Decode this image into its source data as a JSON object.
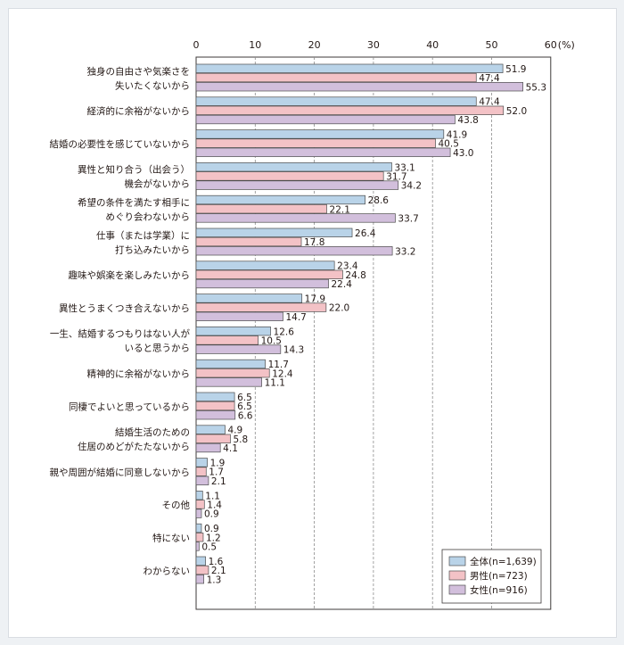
{
  "chart_data": {
    "type": "bar",
    "orientation": "horizontal",
    "unit": "(%)",
    "xlim": [
      0,
      60
    ],
    "ticks": [
      0,
      10,
      20,
      30,
      40,
      50,
      60
    ],
    "grid": "dashed vertical",
    "legend_position": "bottom-right",
    "categories": [
      [
        "独身の自由さや気楽さを",
        "失いたくないから"
      ],
      [
        "経済的に余裕がないから"
      ],
      [
        "結婚の必要性を感じていないから"
      ],
      [
        "異性と知り合う（出会う）",
        "機会がないから"
      ],
      [
        "希望の条件を満たす相手に",
        "めぐり会わないから"
      ],
      [
        "仕事（または学業）に",
        "打ち込みたいから"
      ],
      [
        "趣味や娯楽を楽しみたいから"
      ],
      [
        "異性とうまくつき合えないから"
      ],
      [
        "一生、結婚するつもりはない人が",
        "いると思うから"
      ],
      [
        "精神的に余裕がないから"
      ],
      [
        "同棲でよいと思っているから"
      ],
      [
        "結婚生活のための",
        "住居のめどがたたないから"
      ],
      [
        "親や周囲が結婚に同意しないから"
      ],
      [
        "その他"
      ],
      [
        "特にない"
      ],
      [
        "わからない"
      ]
    ],
    "series": [
      {
        "name": "全体(n=1,639)",
        "color": "#b9d3e8",
        "values": [
          51.9,
          47.4,
          41.9,
          33.1,
          28.6,
          26.4,
          23.4,
          17.9,
          12.6,
          11.7,
          6.5,
          4.9,
          1.9,
          1.1,
          0.9,
          1.6
        ]
      },
      {
        "name": "男性(n=723)",
        "color": "#f3c2c6",
        "values": [
          47.4,
          52.0,
          40.5,
          31.7,
          22.1,
          17.8,
          24.8,
          22.0,
          10.5,
          12.4,
          6.5,
          5.8,
          1.7,
          1.4,
          1.2,
          2.1
        ]
      },
      {
        "name": "女性(n=916)",
        "color": "#d2bfdc",
        "values": [
          55.3,
          43.8,
          43.0,
          34.2,
          33.7,
          33.2,
          22.4,
          14.7,
          14.3,
          11.1,
          6.6,
          4.1,
          2.1,
          0.9,
          0.5,
          1.3
        ]
      }
    ]
  }
}
